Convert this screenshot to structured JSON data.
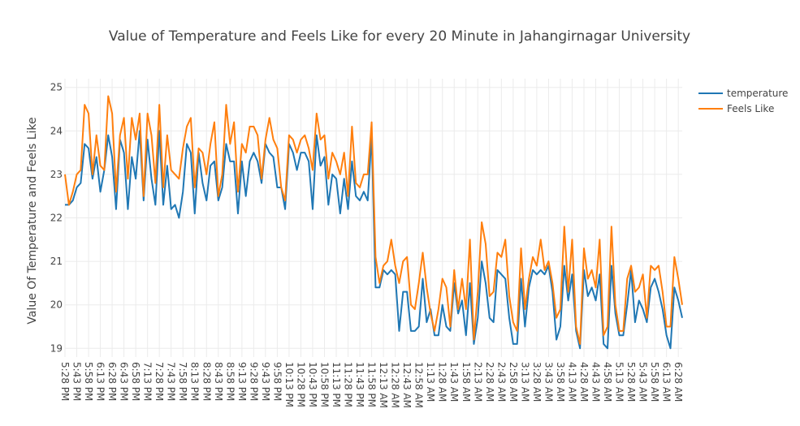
{
  "chart_data": {
    "type": "line",
    "title": "Value of Temperature and Feels Like for every 20 Minute in Jahangirnagar University",
    "xlabel": "",
    "ylabel": "Value Of Temperature and Feels Like",
    "ylim": [
      18.8,
      25.2
    ],
    "yticks": [
      19,
      20,
      21,
      22,
      23,
      24,
      25
    ],
    "grid": true,
    "legend_position": "top-right",
    "x_tick_labels": [
      "5:28 PM",
      "5:43 PM",
      "5:58 PM",
      "6:13 PM",
      "6:28 PM",
      "6:43 PM",
      "6:58 PM",
      "7:13 PM",
      "7:28 PM",
      "7:43 PM",
      "7:58 PM",
      "8:13 PM",
      "8:28 PM",
      "8:43 PM",
      "8:58 PM",
      "9:13 PM",
      "9:28 PM",
      "9:43 PM",
      "9:58 PM",
      "10:13 PM",
      "10:28 PM",
      "10:43 PM",
      "10:58 PM",
      "11:13 PM",
      "11:28 PM",
      "11:43 PM",
      "11:58 PM",
      "12:13 AM",
      "12:28 AM",
      "12:43 AM",
      "12:58 AM",
      "1:13 AM",
      "1:28 AM",
      "1:43 AM",
      "1:58 AM",
      "2:13 AM",
      "2:28 AM",
      "2:43 AM",
      "2:58 AM",
      "3:13 AM",
      "3:28 AM",
      "3:43 AM",
      "3:58 AM",
      "4:13 AM",
      "4:28 AM",
      "4:43 AM",
      "4:58 AM",
      "5:13 AM",
      "5:28 AM",
      "5:43 AM",
      "5:58 AM",
      "6:13 AM",
      "6:28 AM"
    ],
    "series": [
      {
        "name": "temperature",
        "color": "#1f77b4",
        "values": [
          22.3,
          22.3,
          22.4,
          22.7,
          22.8,
          23.7,
          23.6,
          22.9,
          23.4,
          22.6,
          23.1,
          23.9,
          23.4,
          22.2,
          23.8,
          23.5,
          22.2,
          23.4,
          22.9,
          24.0,
          22.4,
          23.8,
          22.9,
          22.3,
          24.0,
          22.3,
          23.2,
          22.2,
          22.3,
          22.0,
          22.6,
          23.7,
          23.5,
          22.1,
          23.5,
          22.8,
          22.4,
          23.2,
          23.3,
          22.4,
          22.7,
          23.7,
          23.3,
          23.3,
          22.1,
          23.3,
          22.5,
          23.3,
          23.5,
          23.3,
          22.8,
          23.7,
          23.5,
          23.4,
          22.7,
          22.7,
          22.2,
          23.7,
          23.5,
          23.1,
          23.5,
          23.5,
          23.3,
          22.2,
          23.9,
          23.2,
          23.4,
          22.3,
          23.0,
          22.9,
          22.1,
          22.9,
          22.2,
          23.3,
          22.5,
          22.4,
          22.6,
          22.4,
          23.9,
          20.4,
          20.4,
          20.8,
          20.7,
          20.8,
          20.7,
          19.4,
          20.3,
          20.3,
          19.4,
          19.4,
          19.5,
          20.6,
          19.6,
          19.9,
          19.3,
          19.3,
          20.0,
          19.5,
          19.4,
          20.5,
          19.8,
          20.1,
          19.3,
          20.5,
          19.1,
          19.7,
          21.0,
          20.5,
          19.7,
          19.6,
          20.8,
          20.7,
          20.6,
          19.7,
          19.1,
          19.1,
          20.6,
          19.5,
          20.4,
          20.8,
          20.7,
          20.8,
          20.7,
          20.9,
          20.3,
          19.2,
          19.5,
          20.9,
          20.1,
          20.7,
          19.4,
          19.0,
          20.8,
          20.2,
          20.4,
          20.1,
          20.7,
          19.1,
          19.0,
          20.9,
          19.8,
          19.3,
          19.3,
          20.0,
          20.8,
          19.6,
          20.1,
          19.9,
          19.6,
          20.4,
          20.6,
          20.3,
          19.9,
          19.3,
          19.0,
          20.4,
          20.1,
          19.7
        ]
      },
      {
        "name": "Feels Like",
        "color": "#ff7f0e",
        "values": [
          23.0,
          22.3,
          22.6,
          23.0,
          23.1,
          24.6,
          24.4,
          23.0,
          23.9,
          23.2,
          23.1,
          24.8,
          24.4,
          22.6,
          23.9,
          24.3,
          22.9,
          24.3,
          23.8,
          24.4,
          22.5,
          24.4,
          23.9,
          22.8,
          24.6,
          22.7,
          23.9,
          23.1,
          23.0,
          22.9,
          23.6,
          24.1,
          24.3,
          22.7,
          23.6,
          23.5,
          23.0,
          23.7,
          24.2,
          22.5,
          23.0,
          24.6,
          23.7,
          24.2,
          22.6,
          23.7,
          23.5,
          24.1,
          24.1,
          23.9,
          22.9,
          23.8,
          24.3,
          23.8,
          23.6,
          22.7,
          22.4,
          23.9,
          23.8,
          23.5,
          23.8,
          23.9,
          23.6,
          23.1,
          24.4,
          23.8,
          23.9,
          22.9,
          23.5,
          23.3,
          23.0,
          23.5,
          22.5,
          24.1,
          22.8,
          22.7,
          23.0,
          23.0,
          24.2,
          21.1,
          20.5,
          20.9,
          21.0,
          21.5,
          20.9,
          20.5,
          21.0,
          21.1,
          20.0,
          19.9,
          20.5,
          21.2,
          20.4,
          19.8,
          19.4,
          19.9,
          20.6,
          20.4,
          19.5,
          20.8,
          19.9,
          20.6,
          19.9,
          21.5,
          19.2,
          20.3,
          21.9,
          21.4,
          20.2,
          20.3,
          21.2,
          21.1,
          21.5,
          20.2,
          19.6,
          19.4,
          21.3,
          19.9,
          20.6,
          21.1,
          20.9,
          21.5,
          20.8,
          21.0,
          20.5,
          19.7,
          19.9,
          21.8,
          20.3,
          21.5,
          19.5,
          19.1,
          21.3,
          20.6,
          20.8,
          20.4,
          21.5,
          19.3,
          19.5,
          21.8,
          20.0,
          19.4,
          19.4,
          20.6,
          20.9,
          20.3,
          20.4,
          20.7,
          19.7,
          20.9,
          20.8,
          20.9,
          20.3,
          19.5,
          19.5,
          21.1,
          20.6,
          20.0
        ]
      }
    ]
  }
}
